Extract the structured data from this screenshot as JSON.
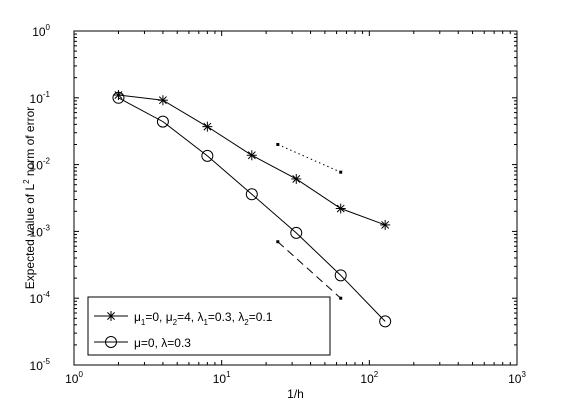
{
  "chart_data": {
    "type": "line",
    "xscale": "log",
    "yscale": "log",
    "xlim": [
      1,
      1000
    ],
    "ylim": [
      1e-05,
      1
    ],
    "xlabel": "1/h",
    "ylabel": {
      "pre": "Expected value of L",
      "sup": "2",
      "post": " norm of error"
    },
    "grid": false,
    "legend_position": "bottom-left",
    "x_ticks": [
      {
        "value": 1,
        "base": "10",
        "exp": "0"
      },
      {
        "value": 10,
        "base": "10",
        "exp": "1"
      },
      {
        "value": 100,
        "base": "10",
        "exp": "2"
      },
      {
        "value": 1000,
        "base": "10",
        "exp": "3"
      }
    ],
    "y_ticks": [
      {
        "value": 1e-05,
        "base": "10",
        "exp": "-5"
      },
      {
        "value": 0.0001,
        "base": "10",
        "exp": "-4"
      },
      {
        "value": 0.001,
        "base": "10",
        "exp": "-3"
      },
      {
        "value": 0.01,
        "base": "10",
        "exp": "-2"
      },
      {
        "value": 0.1,
        "base": "10",
        "exp": "-1"
      },
      {
        "value": 1,
        "base": "10",
        "exp": "0"
      }
    ],
    "series": [
      {
        "marker": "star",
        "color": "#000000",
        "x": [
          2,
          4,
          8,
          16,
          32,
          64,
          128
        ],
        "y": [
          0.11,
          0.092,
          0.037,
          0.0138,
          0.0061,
          0.0022,
          0.00125
        ],
        "legend": [
          {
            "t": "μ",
            "s": ""
          },
          {
            "t": "1",
            "s": "sub"
          },
          {
            "t": "=0, μ",
            "s": ""
          },
          {
            "t": "2",
            "s": "sub"
          },
          {
            "t": "=4, λ",
            "s": ""
          },
          {
            "t": "1",
            "s": "sub"
          },
          {
            "t": "=0.3, λ",
            "s": ""
          },
          {
            "t": "2",
            "s": "sub"
          },
          {
            "t": "=0.1",
            "s": ""
          }
        ]
      },
      {
        "marker": "circle",
        "color": "#000000",
        "x": [
          2,
          4,
          8,
          16,
          32,
          64,
          128
        ],
        "y": [
          0.1,
          0.044,
          0.0135,
          0.0036,
          0.00095,
          0.00022,
          4.5e-05
        ],
        "legend": [
          {
            "t": "μ=0, λ=0.3",
            "s": ""
          }
        ]
      }
    ],
    "reference_lines": [
      {
        "style": "dotted",
        "x": [
          24,
          64
        ],
        "y": [
          0.02,
          0.0077
        ]
      },
      {
        "style": "dashed",
        "x": [
          24,
          64
        ],
        "y": [
          0.0007,
          0.0001
        ]
      }
    ]
  }
}
